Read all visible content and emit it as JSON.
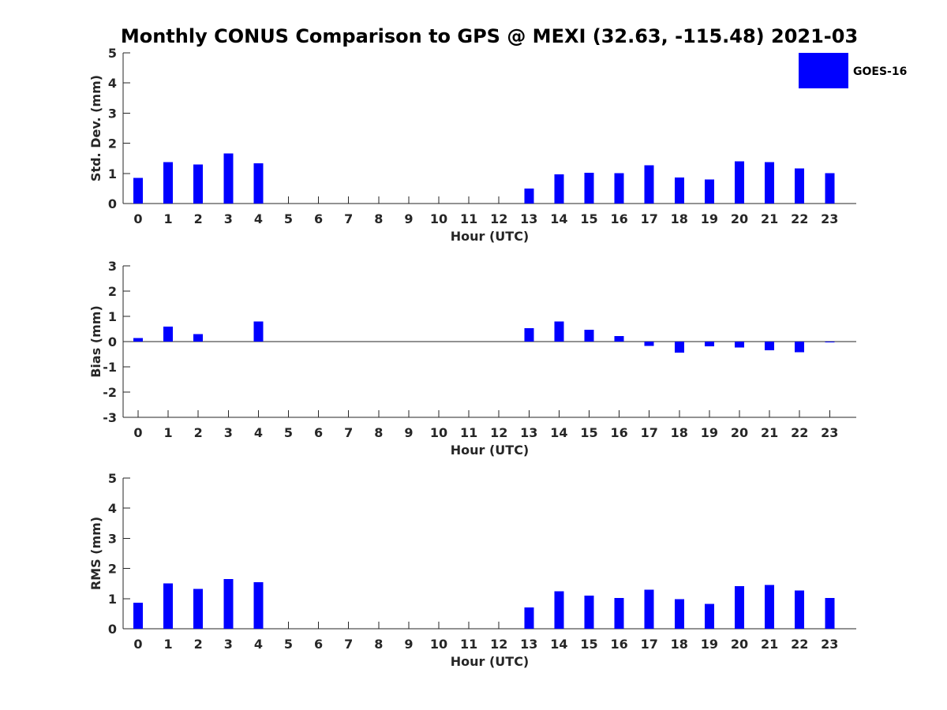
{
  "colors": {
    "goes16": "#0000ff",
    "axis": "#262626"
  },
  "chart_data": [
    {
      "type": "bar",
      "title": "Monthly CONUS Comparison to GPS @ MEXI (32.63, -115.48) 2021-03",
      "xlabel": "Hour (UTC)",
      "ylabel": "Std. Dev. (mm)",
      "ylim": [
        0,
        5
      ],
      "yticks": [
        "0",
        "1",
        "2",
        "3",
        "4",
        "5"
      ],
      "categories": [
        "0",
        "1",
        "2",
        "3",
        "4",
        "5",
        "6",
        "7",
        "8",
        "9",
        "10",
        "11",
        "12",
        "13",
        "14",
        "15",
        "16",
        "17",
        "18",
        "19",
        "20",
        "21",
        "22",
        "23"
      ],
      "legend": {
        "position": "top-right",
        "entries": [
          "GOES-16"
        ]
      },
      "series": [
        {
          "name": "GOES-16",
          "values": [
            0.85,
            1.38,
            1.3,
            1.66,
            1.33,
            null,
            null,
            null,
            null,
            null,
            null,
            null,
            null,
            0.5,
            0.97,
            1.02,
            1.01,
            1.27,
            0.87,
            0.8,
            1.4,
            1.38,
            1.17,
            1.01
          ]
        }
      ]
    },
    {
      "type": "bar",
      "xlabel": "Hour (UTC)",
      "ylabel": "Bias (mm)",
      "ylim": [
        -3,
        3
      ],
      "yticks": [
        "-3",
        "-2",
        "-1",
        "0",
        "1",
        "2",
        "3"
      ],
      "categories": [
        "0",
        "1",
        "2",
        "3",
        "4",
        "5",
        "6",
        "7",
        "8",
        "9",
        "10",
        "11",
        "12",
        "13",
        "14",
        "15",
        "16",
        "17",
        "18",
        "19",
        "20",
        "21",
        "22",
        "23"
      ],
      "series": [
        {
          "name": "GOES-16",
          "values": [
            0.14,
            0.6,
            0.29,
            null,
            0.79,
            null,
            null,
            null,
            null,
            null,
            null,
            null,
            null,
            0.53,
            0.79,
            0.47,
            0.22,
            -0.17,
            -0.44,
            -0.18,
            -0.23,
            -0.34,
            -0.42,
            -0.02
          ]
        }
      ]
    },
    {
      "type": "bar",
      "xlabel": "Hour (UTC)",
      "ylabel": "RMS (mm)",
      "ylim": [
        0,
        5
      ],
      "yticks": [
        "0",
        "1",
        "2",
        "3",
        "4",
        "5"
      ],
      "categories": [
        "0",
        "1",
        "2",
        "3",
        "4",
        "5",
        "6",
        "7",
        "8",
        "9",
        "10",
        "11",
        "12",
        "13",
        "14",
        "15",
        "16",
        "17",
        "18",
        "19",
        "20",
        "21",
        "22",
        "23"
      ],
      "series": [
        {
          "name": "GOES-16",
          "values": [
            0.86,
            1.5,
            1.32,
            1.65,
            1.55,
            null,
            null,
            null,
            null,
            null,
            null,
            null,
            null,
            0.71,
            1.24,
            1.1,
            1.02,
            1.3,
            0.98,
            0.82,
            1.42,
            1.45,
            1.27,
            1.02
          ]
        }
      ]
    }
  ]
}
